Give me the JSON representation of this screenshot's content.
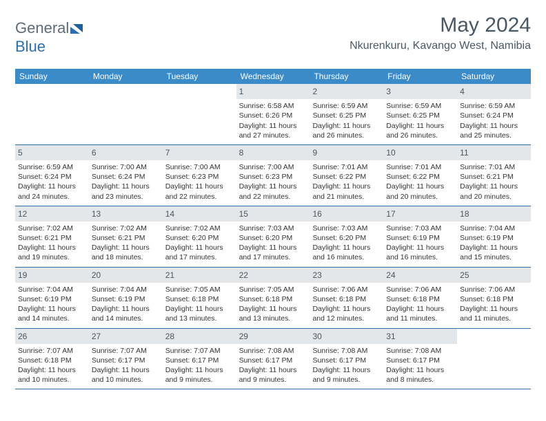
{
  "logo": {
    "part1": "General",
    "part2": "Blue"
  },
  "header": {
    "title": "May 2024",
    "location": "Nkurenkuru, Kavango West, Namibia"
  },
  "colors": {
    "header_bg": "#3b8bc9",
    "daynum_bg": "#e4e7ea",
    "rule": "#2f6fa8",
    "text": "#333333",
    "title_text": "#4a5865"
  },
  "day_names": [
    "Sunday",
    "Monday",
    "Tuesday",
    "Wednesday",
    "Thursday",
    "Friday",
    "Saturday"
  ],
  "weeks": [
    [
      {
        "n": "",
        "sr": "",
        "ss": "",
        "dl": ""
      },
      {
        "n": "",
        "sr": "",
        "ss": "",
        "dl": ""
      },
      {
        "n": "",
        "sr": "",
        "ss": "",
        "dl": ""
      },
      {
        "n": "1",
        "sr": "6:58 AM",
        "ss": "6:26 PM",
        "dl": "11 hours and 27 minutes."
      },
      {
        "n": "2",
        "sr": "6:59 AM",
        "ss": "6:25 PM",
        "dl": "11 hours and 26 minutes."
      },
      {
        "n": "3",
        "sr": "6:59 AM",
        "ss": "6:25 PM",
        "dl": "11 hours and 26 minutes."
      },
      {
        "n": "4",
        "sr": "6:59 AM",
        "ss": "6:24 PM",
        "dl": "11 hours and 25 minutes."
      }
    ],
    [
      {
        "n": "5",
        "sr": "6:59 AM",
        "ss": "6:24 PM",
        "dl": "11 hours and 24 minutes."
      },
      {
        "n": "6",
        "sr": "7:00 AM",
        "ss": "6:24 PM",
        "dl": "11 hours and 23 minutes."
      },
      {
        "n": "7",
        "sr": "7:00 AM",
        "ss": "6:23 PM",
        "dl": "11 hours and 22 minutes."
      },
      {
        "n": "8",
        "sr": "7:00 AM",
        "ss": "6:23 PM",
        "dl": "11 hours and 22 minutes."
      },
      {
        "n": "9",
        "sr": "7:01 AM",
        "ss": "6:22 PM",
        "dl": "11 hours and 21 minutes."
      },
      {
        "n": "10",
        "sr": "7:01 AM",
        "ss": "6:22 PM",
        "dl": "11 hours and 20 minutes."
      },
      {
        "n": "11",
        "sr": "7:01 AM",
        "ss": "6:21 PM",
        "dl": "11 hours and 20 minutes."
      }
    ],
    [
      {
        "n": "12",
        "sr": "7:02 AM",
        "ss": "6:21 PM",
        "dl": "11 hours and 19 minutes."
      },
      {
        "n": "13",
        "sr": "7:02 AM",
        "ss": "6:21 PM",
        "dl": "11 hours and 18 minutes."
      },
      {
        "n": "14",
        "sr": "7:02 AM",
        "ss": "6:20 PM",
        "dl": "11 hours and 17 minutes."
      },
      {
        "n": "15",
        "sr": "7:03 AM",
        "ss": "6:20 PM",
        "dl": "11 hours and 17 minutes."
      },
      {
        "n": "16",
        "sr": "7:03 AM",
        "ss": "6:20 PM",
        "dl": "11 hours and 16 minutes."
      },
      {
        "n": "17",
        "sr": "7:03 AM",
        "ss": "6:19 PM",
        "dl": "11 hours and 16 minutes."
      },
      {
        "n": "18",
        "sr": "7:04 AM",
        "ss": "6:19 PM",
        "dl": "11 hours and 15 minutes."
      }
    ],
    [
      {
        "n": "19",
        "sr": "7:04 AM",
        "ss": "6:19 PM",
        "dl": "11 hours and 14 minutes."
      },
      {
        "n": "20",
        "sr": "7:04 AM",
        "ss": "6:19 PM",
        "dl": "11 hours and 14 minutes."
      },
      {
        "n": "21",
        "sr": "7:05 AM",
        "ss": "6:18 PM",
        "dl": "11 hours and 13 minutes."
      },
      {
        "n": "22",
        "sr": "7:05 AM",
        "ss": "6:18 PM",
        "dl": "11 hours and 13 minutes."
      },
      {
        "n": "23",
        "sr": "7:06 AM",
        "ss": "6:18 PM",
        "dl": "11 hours and 12 minutes."
      },
      {
        "n": "24",
        "sr": "7:06 AM",
        "ss": "6:18 PM",
        "dl": "11 hours and 11 minutes."
      },
      {
        "n": "25",
        "sr": "7:06 AM",
        "ss": "6:18 PM",
        "dl": "11 hours and 11 minutes."
      }
    ],
    [
      {
        "n": "26",
        "sr": "7:07 AM",
        "ss": "6:18 PM",
        "dl": "11 hours and 10 minutes."
      },
      {
        "n": "27",
        "sr": "7:07 AM",
        "ss": "6:17 PM",
        "dl": "11 hours and 10 minutes."
      },
      {
        "n": "28",
        "sr": "7:07 AM",
        "ss": "6:17 PM",
        "dl": "11 hours and 9 minutes."
      },
      {
        "n": "29",
        "sr": "7:08 AM",
        "ss": "6:17 PM",
        "dl": "11 hours and 9 minutes."
      },
      {
        "n": "30",
        "sr": "7:08 AM",
        "ss": "6:17 PM",
        "dl": "11 hours and 9 minutes."
      },
      {
        "n": "31",
        "sr": "7:08 AM",
        "ss": "6:17 PM",
        "dl": "11 hours and 8 minutes."
      },
      {
        "n": "",
        "sr": "",
        "ss": "",
        "dl": ""
      }
    ]
  ],
  "labels": {
    "sunrise": "Sunrise:",
    "sunset": "Sunset:",
    "daylight": "Daylight:"
  }
}
